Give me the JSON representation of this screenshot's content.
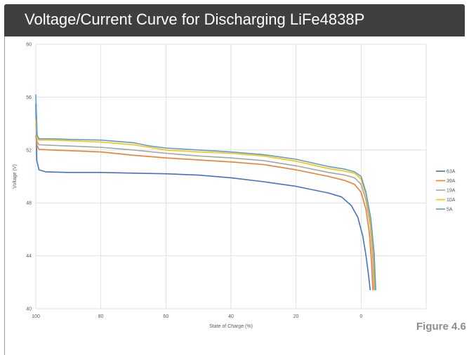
{
  "header": {
    "title": "Voltage/Current Curve for Discharging LiFe4838P"
  },
  "figure_label": "Figure 4.6",
  "chart_data": {
    "type": "line",
    "title": "",
    "xlabel": "State of Charge (%)",
    "ylabel": "Voltage (V)",
    "xlim": [
      100,
      -20
    ],
    "ylim": [
      40,
      60
    ],
    "x_ticks": [
      100,
      80,
      60,
      40,
      20,
      0
    ],
    "y_ticks": [
      40,
      44,
      48,
      52,
      56,
      60
    ],
    "x_reversed": true,
    "grid": true,
    "legend_position": "right",
    "series": [
      {
        "name": "63A",
        "color": "#4472c4",
        "points": [
          [
            100,
            55.5
          ],
          [
            99.7,
            51.2
          ],
          [
            99,
            50.5
          ],
          [
            97,
            50.35
          ],
          [
            90,
            50.3
          ],
          [
            80,
            50.3
          ],
          [
            70,
            50.25
          ],
          [
            60,
            50.2
          ],
          [
            50,
            50.1
          ],
          [
            40,
            49.9
          ],
          [
            30,
            49.6
          ],
          [
            20,
            49.25
          ],
          [
            10,
            48.75
          ],
          [
            6,
            48.45
          ],
          [
            3,
            47.8
          ],
          [
            1,
            46.9
          ],
          [
            -0.5,
            45.5
          ],
          [
            -1.5,
            44.0
          ],
          [
            -2.3,
            42.5
          ],
          [
            -2.8,
            41.4
          ]
        ]
      },
      {
        "name": "39A",
        "color": "#ed7d31",
        "points": [
          [
            100,
            53.1
          ],
          [
            99.6,
            52.3
          ],
          [
            99,
            52.05
          ],
          [
            95,
            52.0
          ],
          [
            90,
            51.95
          ],
          [
            80,
            51.85
          ],
          [
            70,
            51.6
          ],
          [
            60,
            51.4
          ],
          [
            50,
            51.25
          ],
          [
            40,
            51.1
          ],
          [
            30,
            50.9
          ],
          [
            20,
            50.5
          ],
          [
            10,
            50.0
          ],
          [
            5,
            49.7
          ],
          [
            2,
            49.4
          ],
          [
            0,
            48.8
          ],
          [
            -1.5,
            47.5
          ],
          [
            -2.5,
            45.8
          ],
          [
            -3.2,
            43.5
          ],
          [
            -3.6,
            41.4
          ]
        ]
      },
      {
        "name": "19A",
        "color": "#a5a5a5",
        "points": [
          [
            100,
            54.0
          ],
          [
            99.6,
            52.6
          ],
          [
            99,
            52.4
          ],
          [
            95,
            52.35
          ],
          [
            90,
            52.3
          ],
          [
            80,
            52.2
          ],
          [
            70,
            52.0
          ],
          [
            60,
            51.75
          ],
          [
            50,
            51.55
          ],
          [
            40,
            51.4
          ],
          [
            30,
            51.2
          ],
          [
            20,
            50.8
          ],
          [
            10,
            50.3
          ],
          [
            5,
            50.1
          ],
          [
            2,
            49.9
          ],
          [
            0,
            49.4
          ],
          [
            -1.5,
            48.2
          ],
          [
            -2.8,
            46.3
          ],
          [
            -3.6,
            43.8
          ],
          [
            -4.0,
            41.4
          ]
        ]
      },
      {
        "name": "10A",
        "color": "#ffc000",
        "points": [
          [
            100,
            54.3
          ],
          [
            99.6,
            52.9
          ],
          [
            99,
            52.75
          ],
          [
            95,
            52.75
          ],
          [
            90,
            52.7
          ],
          [
            80,
            52.6
          ],
          [
            70,
            52.4
          ],
          [
            65,
            52.2
          ],
          [
            60,
            52.0
          ],
          [
            50,
            51.85
          ],
          [
            40,
            51.75
          ],
          [
            30,
            51.55
          ],
          [
            20,
            51.15
          ],
          [
            10,
            50.6
          ],
          [
            5,
            50.4
          ],
          [
            2,
            50.25
          ],
          [
            0,
            49.8
          ],
          [
            -1.5,
            48.6
          ],
          [
            -2.8,
            46.7
          ],
          [
            -3.8,
            44.0
          ],
          [
            -4.3,
            41.4
          ]
        ]
      },
      {
        "name": "5A",
        "color": "#5b9bd5",
        "points": [
          [
            100,
            56.2
          ],
          [
            99.6,
            53.1
          ],
          [
            99,
            52.85
          ],
          [
            95,
            52.85
          ],
          [
            90,
            52.8
          ],
          [
            80,
            52.75
          ],
          [
            70,
            52.55
          ],
          [
            65,
            52.3
          ],
          [
            60,
            52.15
          ],
          [
            50,
            52.0
          ],
          [
            40,
            51.85
          ],
          [
            30,
            51.65
          ],
          [
            20,
            51.3
          ],
          [
            10,
            50.75
          ],
          [
            5,
            50.55
          ],
          [
            2,
            50.35
          ],
          [
            0,
            50.0
          ],
          [
            -1.5,
            48.8
          ],
          [
            -3.0,
            46.8
          ],
          [
            -4.0,
            44.2
          ],
          [
            -4.5,
            41.4
          ]
        ]
      }
    ]
  }
}
